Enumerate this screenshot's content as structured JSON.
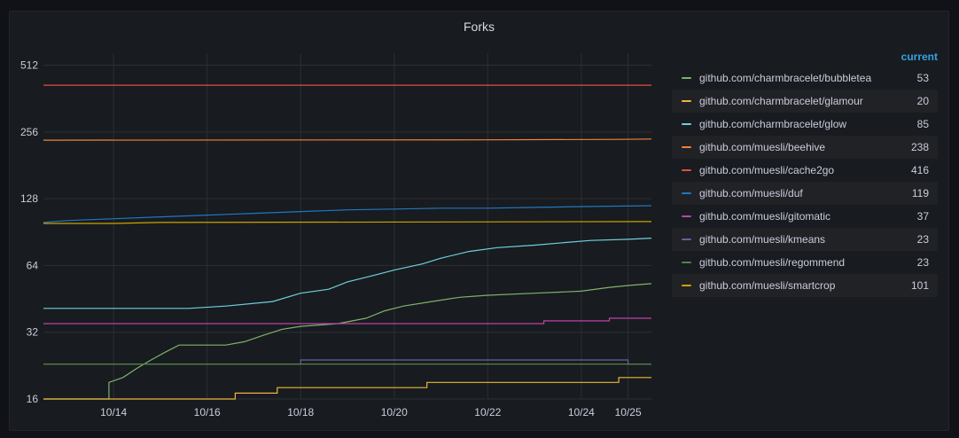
{
  "panel": {
    "title": "Forks"
  },
  "legend": {
    "header": "current"
  },
  "chart_data": {
    "type": "line",
    "title": "Forks",
    "y_scale": "log2",
    "ylim": [
      16,
      580
    ],
    "yticks": [
      16,
      32,
      64,
      128,
      256,
      512
    ],
    "ytick_labels": [
      "16",
      "32",
      "64",
      "128",
      "256",
      "512"
    ],
    "xlim": [
      12.5,
      25.5
    ],
    "xticks": [
      14,
      16,
      18,
      20,
      22,
      24,
      25
    ],
    "xtick_labels": [
      "10/14",
      "10/16",
      "10/18",
      "10/20",
      "10/22",
      "10/24",
      "10/25"
    ],
    "grid": true,
    "legend_position": "right",
    "series": [
      {
        "name": "github.com/charmbracelet/bubbletea",
        "current": "53",
        "color": "#7eb26d",
        "points": [
          [
            12.5,
            16
          ],
          [
            13.9,
            16
          ],
          [
            13.9,
            19
          ],
          [
            14.2,
            20
          ],
          [
            14.5,
            22
          ],
          [
            14.8,
            24
          ],
          [
            15.1,
            26
          ],
          [
            15.4,
            28
          ],
          [
            15.8,
            28
          ],
          [
            16.4,
            28
          ],
          [
            16.8,
            29
          ],
          [
            17.2,
            31
          ],
          [
            17.6,
            33
          ],
          [
            18.0,
            34
          ],
          [
            18.8,
            35
          ],
          [
            19.4,
            37
          ],
          [
            19.8,
            40
          ],
          [
            20.2,
            42
          ],
          [
            20.8,
            44
          ],
          [
            21.4,
            46
          ],
          [
            22.0,
            47
          ],
          [
            23.0,
            48
          ],
          [
            24.0,
            49
          ],
          [
            24.6,
            51
          ],
          [
            25.0,
            52
          ],
          [
            25.5,
            53
          ]
        ]
      },
      {
        "name": "github.com/charmbracelet/glamour",
        "current": "20",
        "color": "#eab839",
        "points": [
          [
            12.5,
            16
          ],
          [
            16.6,
            16
          ],
          [
            16.6,
            17
          ],
          [
            17.5,
            17
          ],
          [
            17.5,
            18
          ],
          [
            20.7,
            18
          ],
          [
            20.7,
            19
          ],
          [
            24.8,
            19
          ],
          [
            24.8,
            20
          ],
          [
            25.5,
            20
          ]
        ]
      },
      {
        "name": "github.com/charmbracelet/glow",
        "current": "85",
        "color": "#6ed0e0",
        "points": [
          [
            12.5,
            41
          ],
          [
            15.6,
            41
          ],
          [
            16.4,
            42
          ],
          [
            17.4,
            44
          ],
          [
            18.0,
            48
          ],
          [
            18.6,
            50
          ],
          [
            19.0,
            54
          ],
          [
            19.6,
            58
          ],
          [
            20.0,
            61
          ],
          [
            20.6,
            65
          ],
          [
            21.0,
            69
          ],
          [
            21.6,
            74
          ],
          [
            22.2,
            77
          ],
          [
            23.0,
            79
          ],
          [
            23.6,
            81
          ],
          [
            24.2,
            83
          ],
          [
            25.0,
            84
          ],
          [
            25.5,
            85
          ]
        ]
      },
      {
        "name": "github.com/muesli/beehive",
        "current": "238",
        "color": "#ef843c",
        "points": [
          [
            12.5,
            235
          ],
          [
            22.0,
            236
          ],
          [
            24.8,
            237
          ],
          [
            25.5,
            238
          ]
        ]
      },
      {
        "name": "github.com/muesli/cache2go",
        "current": "416",
        "color": "#e24d42",
        "points": [
          [
            12.5,
            416
          ],
          [
            25.5,
            416
          ]
        ]
      },
      {
        "name": "github.com/muesli/duf",
        "current": "119",
        "color": "#1f78c1",
        "points": [
          [
            12.5,
            100
          ],
          [
            13.0,
            102
          ],
          [
            14.0,
            104
          ],
          [
            15.0,
            106
          ],
          [
            16.0,
            108
          ],
          [
            17.0,
            110
          ],
          [
            18.0,
            112
          ],
          [
            19.0,
            114
          ],
          [
            20.0,
            115
          ],
          [
            21.0,
            116
          ],
          [
            22.0,
            116
          ],
          [
            23.0,
            117
          ],
          [
            24.0,
            118
          ],
          [
            25.5,
            119
          ]
        ]
      },
      {
        "name": "github.com/muesli/gitomatic",
        "current": "37",
        "color": "#ba43a9",
        "points": [
          [
            12.5,
            35
          ],
          [
            23.2,
            35
          ],
          [
            23.2,
            36
          ],
          [
            24.6,
            36
          ],
          [
            24.6,
            37
          ],
          [
            25.5,
            37
          ]
        ]
      },
      {
        "name": "github.com/muesli/kmeans",
        "current": "23",
        "color": "#705da0",
        "points": [
          [
            12.5,
            23
          ],
          [
            18.0,
            23
          ],
          [
            18.0,
            24
          ],
          [
            25.0,
            24
          ],
          [
            25.0,
            23
          ],
          [
            25.5,
            23
          ]
        ]
      },
      {
        "name": "github.com/muesli/regommend",
        "current": "23",
        "color": "#508642",
        "points": [
          [
            12.5,
            23
          ],
          [
            25.5,
            23
          ]
        ]
      },
      {
        "name": "github.com/muesli/smartcrop",
        "current": "101",
        "color": "#cca300",
        "points": [
          [
            12.5,
            99
          ],
          [
            14.0,
            99
          ],
          [
            15.0,
            100
          ],
          [
            25.5,
            101
          ]
        ]
      }
    ]
  }
}
